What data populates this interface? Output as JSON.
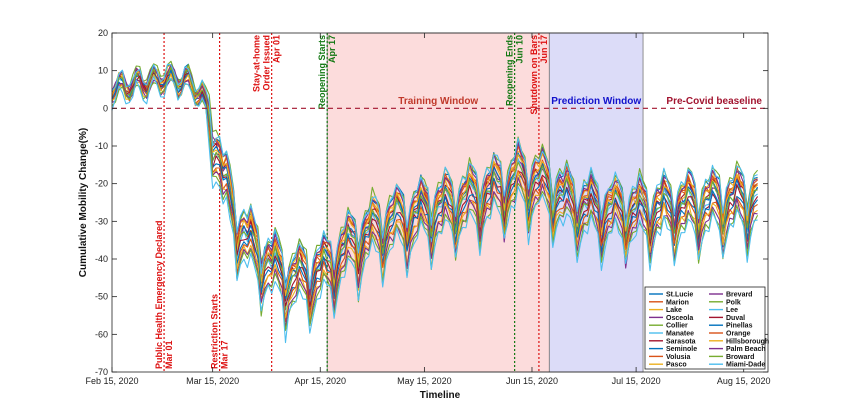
{
  "chart_data": {
    "type": "line",
    "xlabel": "Timeline",
    "ylabel": "Cumulative Mobility Change(%)",
    "ylim": [
      -70,
      20
    ],
    "yticks": [
      20,
      10,
      0,
      -10,
      -20,
      -30,
      -40,
      -50,
      -60,
      -70
    ],
    "xlim": [
      "2020-02-15",
      "2020-08-22"
    ],
    "xticks": [
      "2020-02-15",
      "2020-03-15",
      "2020-04-15",
      "2020-05-15",
      "2020-06-15",
      "2020-07-15",
      "2020-08-15"
    ],
    "xtick_labels": [
      "Feb 15, 2020",
      "Mar 15, 2020",
      "Apr 15, 2020",
      "May 15, 2020",
      "Jun 15, 2020",
      "Jul 15, 2020",
      "Aug 15, 2020"
    ],
    "grid": false,
    "legend_position": "bottom-right",
    "baseline": {
      "value": 0,
      "label": "Pre-Covid beaseline",
      "color": "#a2142f"
    },
    "regions": [
      {
        "label": "Training Window",
        "start": "2020-04-17",
        "end": "2020-06-20",
        "color": "#fcdcdc",
        "label_color": "#c0392b"
      },
      {
        "label": "Prediction Window",
        "start": "2020-06-20",
        "end": "2020-07-17",
        "color": "#dcdcf8",
        "label_color": "#1111cc"
      }
    ],
    "events": [
      {
        "date": "2020-03-01",
        "lines": [
          "Public Health Emergency Declared",
          "Mar 01"
        ],
        "color": "#dd1111",
        "label_pos": "bottom"
      },
      {
        "date": "2020-03-17",
        "lines": [
          "Restriction Starts",
          "Mar 17"
        ],
        "color": "#dd1111",
        "label_pos": "bottom"
      },
      {
        "date": "2020-04-01",
        "lines": [
          "Stay-at-home",
          "Order Issued",
          "Apr 01"
        ],
        "color": "#dd1111",
        "label_pos": "top"
      },
      {
        "date": "2020-04-17",
        "lines": [
          "Reopening Starts",
          "Apr 17"
        ],
        "color": "#117711",
        "label_pos": "top"
      },
      {
        "date": "2020-06-10",
        "lines": [
          "Reopening Ends",
          "Jun 10"
        ],
        "color": "#117711",
        "label_pos": "top"
      },
      {
        "date": "2020-06-17",
        "lines": [
          "Shutdown on Bars",
          "Jun 17"
        ],
        "color": "#dd1111",
        "label_pos": "top"
      }
    ],
    "series_names": [
      "St.Lucie",
      "Marion",
      "Lake",
      "Osceola",
      "Collier",
      "Manatee",
      "Sarasota",
      "Seminole",
      "Volusia",
      "Pasco",
      "Brevard",
      "Polk",
      "Lee",
      "Duval",
      "Pinellas",
      "Orange",
      "Hillsborough",
      "Palm Beach",
      "Broward",
      "Miami-Dade"
    ],
    "series_colors": [
      "#0072bd",
      "#d95319",
      "#edb120",
      "#7e2f8e",
      "#77ac30",
      "#4dbeee",
      "#a2142f",
      "#0072bd",
      "#d95319",
      "#edb120",
      "#7e2f8e",
      "#77ac30",
      "#4dbeee",
      "#a2142f",
      "#0072bd",
      "#d95319",
      "#edb120",
      "#7e2f8e",
      "#77ac30",
      "#4dbeee"
    ],
    "series_offsets": [
      5,
      3,
      4,
      1,
      6,
      0,
      2,
      1.5,
      3.5,
      2.5,
      4.5,
      0.5,
      5.5,
      -1,
      -2,
      -3,
      -4,
      -5,
      -6,
      -7
    ],
    "mean_profile": [
      [
        "2020-02-15",
        5
      ],
      [
        "2020-02-20",
        6
      ],
      [
        "2020-02-25",
        7
      ],
      [
        "2020-03-01",
        8
      ],
      [
        "2020-03-05",
        7.5
      ],
      [
        "2020-03-08",
        7
      ],
      [
        "2020-03-12",
        3
      ],
      [
        "2020-03-15",
        -5
      ],
      [
        "2020-03-18",
        -18
      ],
      [
        "2020-03-22",
        -30
      ],
      [
        "2020-03-26",
        -36
      ],
      [
        "2020-03-30",
        -40
      ],
      [
        "2020-04-03",
        -43
      ],
      [
        "2020-04-07",
        -45
      ],
      [
        "2020-04-12",
        -44
      ],
      [
        "2020-04-17",
        -42
      ],
      [
        "2020-04-22",
        -37
      ],
      [
        "2020-04-28",
        -33
      ],
      [
        "2020-05-05",
        -30
      ],
      [
        "2020-05-12",
        -28
      ],
      [
        "2020-05-20",
        -26
      ],
      [
        "2020-05-28",
        -24
      ],
      [
        "2020-06-05",
        -21
      ],
      [
        "2020-06-12",
        -18
      ],
      [
        "2020-06-17",
        -19
      ],
      [
        "2020-06-20",
        -21
      ],
      [
        "2020-06-25",
        -24
      ],
      [
        "2020-07-01",
        -26
      ],
      [
        "2020-07-10",
        -27
      ],
      [
        "2020-07-17",
        -27
      ],
      [
        "2020-07-25",
        -26
      ],
      [
        "2020-08-05",
        -25
      ],
      [
        "2020-08-15",
        -24
      ],
      [
        "2020-08-19",
        -23
      ]
    ]
  }
}
